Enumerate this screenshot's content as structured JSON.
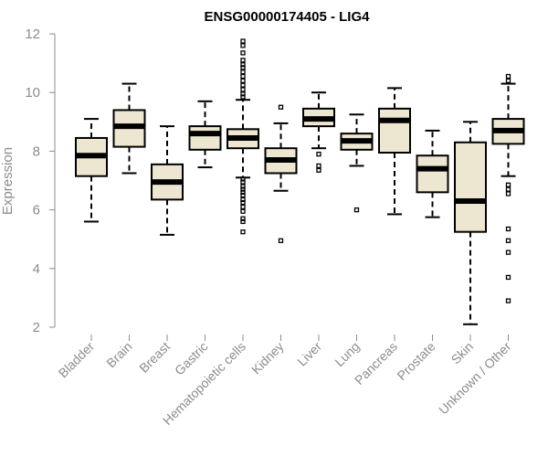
{
  "chart_data": {
    "type": "boxplot",
    "title": "ENSG00000174405 - LIG4",
    "xlabel": "",
    "ylabel": "Expression",
    "ylim": [
      2,
      12
    ],
    "yticks": [
      2,
      4,
      6,
      8,
      10,
      12
    ],
    "box_fill": "#ede6d0",
    "categories": [
      "Bladder",
      "Brain",
      "Breast",
      "Gastric",
      "Hematopoietic cells",
      "Kidney",
      "Liver",
      "Lung",
      "Pancreas",
      "Prostate",
      "Skin",
      "Unknown / Other"
    ],
    "boxes": [
      {
        "category": "Bladder",
        "min": 5.6,
        "q1": 7.15,
        "median": 7.85,
        "q3": 8.45,
        "max": 9.1,
        "outliers": []
      },
      {
        "category": "Brain",
        "min": 7.25,
        "q1": 8.15,
        "median": 8.85,
        "q3": 9.4,
        "max": 10.3,
        "outliers": []
      },
      {
        "category": "Breast",
        "min": 5.15,
        "q1": 6.35,
        "median": 6.95,
        "q3": 7.55,
        "max": 8.85,
        "outliers": []
      },
      {
        "category": "Gastric",
        "min": 7.45,
        "q1": 8.05,
        "median": 8.6,
        "q3": 8.85,
        "max": 9.7,
        "outliers": []
      },
      {
        "category": "Hematopoietic cells",
        "min": 7.1,
        "q1": 8.1,
        "median": 8.45,
        "q3": 8.75,
        "max": 9.75,
        "outliers": [
          11.75,
          11.6,
          11.35,
          11.1,
          10.95,
          10.85,
          10.7,
          10.55,
          10.4,
          10.25,
          10.1,
          9.95,
          9.85,
          7.05,
          6.95,
          6.8,
          6.7,
          6.6,
          6.5,
          6.35,
          6.25,
          6.1,
          5.95,
          5.7,
          5.6,
          5.25
        ]
      },
      {
        "category": "Kidney",
        "min": 6.65,
        "q1": 7.25,
        "median": 7.7,
        "q3": 8.1,
        "max": 8.95,
        "outliers": [
          9.5,
          4.95
        ]
      },
      {
        "category": "Liver",
        "min": 8.1,
        "q1": 8.85,
        "median": 9.1,
        "q3": 9.45,
        "max": 10.0,
        "outliers": [
          7.9,
          7.5,
          7.35
        ]
      },
      {
        "category": "Lung",
        "min": 7.5,
        "q1": 8.05,
        "median": 8.35,
        "q3": 8.6,
        "max": 9.25,
        "outliers": [
          6.0
        ]
      },
      {
        "category": "Pancreas",
        "min": 5.85,
        "q1": 7.95,
        "median": 9.05,
        "q3": 9.45,
        "max": 10.15,
        "outliers": []
      },
      {
        "category": "Prostate",
        "min": 5.75,
        "q1": 6.6,
        "median": 7.4,
        "q3": 7.85,
        "max": 8.7,
        "outliers": []
      },
      {
        "category": "Skin",
        "min": 2.1,
        "q1": 5.25,
        "median": 6.3,
        "q3": 8.3,
        "max": 9.0,
        "outliers": []
      },
      {
        "category": "Unknown / Other",
        "min": 7.15,
        "q1": 8.25,
        "median": 8.7,
        "q3": 9.1,
        "max": 10.3,
        "outliers": [
          10.55,
          10.4,
          6.85,
          6.7,
          6.55,
          5.35,
          4.95,
          4.55,
          3.7,
          2.9
        ]
      }
    ]
  }
}
